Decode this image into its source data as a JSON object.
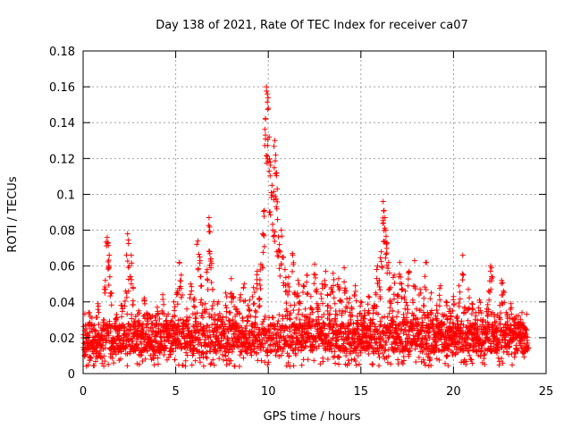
{
  "chart_data": {
    "type": "scatter",
    "title": "Day 138 of 2021, Rate Of TEC Index for receiver ca07",
    "xlabel": "GPS time / hours",
    "ylabel": "ROTI / TECUs",
    "xlim": [
      0,
      25
    ],
    "ylim": [
      0,
      0.18
    ],
    "xticks": [
      0,
      5,
      10,
      15,
      20,
      25
    ],
    "xtick_labels": [
      "0",
      "5",
      "10",
      "15",
      "20",
      "25"
    ],
    "yticks": [
      0,
      0.02,
      0.04,
      0.06,
      0.08,
      0.1,
      0.12,
      0.14,
      0.16,
      0.18
    ],
    "ytick_labels": [
      "0",
      "0.02",
      "0.04",
      "0.06",
      "0.08",
      "0.1",
      "0.12",
      "0.14",
      "0.16",
      "0.18"
    ],
    "grid": true,
    "marker": "+",
    "color": "#ff0000",
    "series": [
      {
        "name": "ca07",
        "points": [
          [
            0.1,
            0.012
          ],
          [
            0.2,
            0.021
          ],
          [
            0.3,
            0.034
          ],
          [
            0.4,
            0.009
          ],
          [
            0.5,
            0.018
          ],
          [
            0.6,
            0.027
          ],
          [
            0.7,
            0.015
          ],
          [
            0.8,
            0.039
          ],
          [
            0.9,
            0.011
          ],
          [
            1.0,
            0.024
          ],
          [
            1.1,
            0.03
          ],
          [
            1.2,
            0.052
          ],
          [
            1.3,
            0.076
          ],
          [
            1.35,
            0.073
          ],
          [
            1.4,
            0.06
          ],
          [
            1.5,
            0.045
          ],
          [
            1.6,
            0.02
          ],
          [
            1.7,
            0.014
          ],
          [
            1.8,
            0.033
          ],
          [
            1.9,
            0.026
          ],
          [
            2.0,
            0.017
          ],
          [
            2.1,
            0.038
          ],
          [
            2.2,
            0.022
          ],
          [
            2.3,
            0.046
          ],
          [
            2.4,
            0.078
          ],
          [
            2.5,
            0.06
          ],
          [
            2.6,
            0.066
          ],
          [
            2.7,
            0.048
          ],
          [
            2.8,
            0.029
          ],
          [
            2.9,
            0.019
          ],
          [
            3.0,
            0.035
          ],
          [
            3.1,
            0.013
          ],
          [
            3.2,
            0.025
          ],
          [
            3.3,
            0.042
          ],
          [
            3.4,
            0.016
          ],
          [
            3.5,
            0.031
          ],
          [
            3.6,
            0.02
          ],
          [
            3.7,
            0.028
          ],
          [
            3.8,
            0.011
          ],
          [
            3.9,
            0.023
          ],
          [
            4.0,
            0.037
          ],
          [
            4.1,
            0.015
          ],
          [
            4.2,
            0.027
          ],
          [
            4.3,
            0.044
          ],
          [
            4.4,
            0.018
          ],
          [
            4.5,
            0.032
          ],
          [
            4.6,
            0.022
          ],
          [
            4.7,
            0.014
          ],
          [
            4.8,
            0.029
          ],
          [
            4.9,
            0.04
          ],
          [
            5.0,
            0.019
          ],
          [
            5.1,
            0.046
          ],
          [
            5.2,
            0.062
          ],
          [
            5.3,
            0.055
          ],
          [
            5.4,
            0.028
          ],
          [
            5.5,
            0.017
          ],
          [
            5.6,
            0.036
          ],
          [
            5.7,
            0.024
          ],
          [
            5.8,
            0.05
          ],
          [
            5.9,
            0.021
          ],
          [
            6.0,
            0.042
          ],
          [
            6.1,
            0.031
          ],
          [
            6.2,
            0.074
          ],
          [
            6.3,
            0.065
          ],
          [
            6.4,
            0.049
          ],
          [
            6.5,
            0.026
          ],
          [
            6.6,
            0.039
          ],
          [
            6.7,
            0.058
          ],
          [
            6.8,
            0.087
          ],
          [
            6.85,
            0.079
          ],
          [
            6.9,
            0.064
          ],
          [
            7.0,
            0.047
          ],
          [
            7.1,
            0.033
          ],
          [
            7.2,
            0.021
          ],
          [
            7.3,
            0.04
          ],
          [
            7.4,
            0.016
          ],
          [
            7.5,
            0.03
          ],
          [
            7.6,
            0.025
          ],
          [
            7.7,
            0.045
          ],
          [
            7.8,
            0.019
          ],
          [
            7.9,
            0.034
          ],
          [
            8.0,
            0.053
          ],
          [
            8.1,
            0.043
          ],
          [
            8.2,
            0.028
          ],
          [
            8.3,
            0.036
          ],
          [
            8.4,
            0.022
          ],
          [
            8.5,
            0.044
          ],
          [
            8.6,
            0.031
          ],
          [
            8.7,
            0.05
          ],
          [
            8.8,
            0.024
          ],
          [
            8.9,
            0.038
          ],
          [
            9.0,
            0.041
          ],
          [
            9.1,
            0.027
          ],
          [
            9.2,
            0.048
          ],
          [
            9.3,
            0.035
          ],
          [
            9.4,
            0.057
          ],
          [
            9.5,
            0.042
          ],
          [
            9.6,
            0.061
          ],
          [
            9.7,
            0.078
          ],
          [
            9.8,
            0.091
          ],
          [
            9.85,
            0.142
          ],
          [
            9.9,
            0.16
          ],
          [
            9.95,
            0.156
          ],
          [
            10.0,
            0.148
          ],
          [
            10.05,
            0.132
          ],
          [
            10.1,
            0.118
          ],
          [
            10.2,
            0.105
          ],
          [
            10.3,
            0.097
          ],
          [
            10.35,
            0.13
          ],
          [
            10.4,
            0.122
          ],
          [
            10.45,
            0.112
          ],
          [
            10.5,
            0.086
          ],
          [
            10.6,
            0.072
          ],
          [
            10.7,
            0.08
          ],
          [
            10.8,
            0.065
          ],
          [
            10.9,
            0.058
          ],
          [
            11.0,
            0.046
          ],
          [
            11.1,
            0.054
          ],
          [
            11.2,
            0.038
          ],
          [
            11.3,
            0.067
          ],
          [
            11.4,
            0.045
          ],
          [
            11.5,
            0.031
          ],
          [
            11.6,
            0.052
          ],
          [
            11.7,
            0.04
          ],
          [
            11.8,
            0.026
          ],
          [
            11.9,
            0.049
          ],
          [
            12.0,
            0.036
          ],
          [
            12.1,
            0.055
          ],
          [
            12.2,
            0.029
          ],
          [
            12.3,
            0.043
          ],
          [
            12.4,
            0.034
          ],
          [
            12.5,
            0.061
          ],
          [
            12.6,
            0.047
          ],
          [
            12.7,
            0.038
          ],
          [
            12.8,
            0.024
          ],
          [
            12.9,
            0.05
          ],
          [
            13.0,
            0.033
          ],
          [
            13.1,
            0.057
          ],
          [
            13.2,
            0.044
          ],
          [
            13.3,
            0.03
          ],
          [
            13.4,
            0.048
          ],
          [
            13.5,
            0.056
          ],
          [
            13.6,
            0.039
          ],
          [
            13.7,
            0.027
          ],
          [
            13.8,
            0.053
          ],
          [
            13.9,
            0.041
          ],
          [
            14.0,
            0.035
          ],
          [
            14.1,
            0.059
          ],
          [
            14.2,
            0.046
          ],
          [
            14.3,
            0.025
          ],
          [
            14.4,
            0.042
          ],
          [
            14.5,
            0.037
          ],
          [
            14.6,
            0.028
          ],
          [
            14.7,
            0.049
          ],
          [
            14.8,
            0.032
          ],
          [
            14.9,
            0.022
          ],
          [
            15.0,
            0.04
          ],
          [
            15.1,
            0.018
          ],
          [
            15.2,
            0.035
          ],
          [
            15.3,
            0.026
          ],
          [
            15.4,
            0.043
          ],
          [
            15.5,
            0.03
          ],
          [
            15.6,
            0.021
          ],
          [
            15.7,
            0.038
          ],
          [
            15.8,
            0.045
          ],
          [
            15.9,
            0.06
          ],
          [
            16.0,
            0.052
          ],
          [
            16.1,
            0.068
          ],
          [
            16.2,
            0.096
          ],
          [
            16.25,
            0.091
          ],
          [
            16.3,
            0.087
          ],
          [
            16.35,
            0.08
          ],
          [
            16.4,
            0.073
          ],
          [
            16.5,
            0.062
          ],
          [
            16.6,
            0.048
          ],
          [
            16.7,
            0.035
          ],
          [
            16.8,
            0.055
          ],
          [
            16.9,
            0.027
          ],
          [
            17.0,
            0.044
          ],
          [
            17.1,
            0.062
          ],
          [
            17.2,
            0.05
          ],
          [
            17.3,
            0.033
          ],
          [
            17.4,
            0.046
          ],
          [
            17.5,
            0.038
          ],
          [
            17.6,
            0.057
          ],
          [
            17.7,
            0.029
          ],
          [
            17.8,
            0.041
          ],
          [
            17.9,
            0.063
          ],
          [
            18.0,
            0.036
          ],
          [
            18.1,
            0.024
          ],
          [
            18.2,
            0.047
          ],
          [
            18.3,
            0.031
          ],
          [
            18.4,
            0.042
          ],
          [
            18.5,
            0.062
          ],
          [
            18.6,
            0.034
          ],
          [
            18.7,
            0.026
          ],
          [
            18.8,
            0.045
          ],
          [
            18.9,
            0.03
          ],
          [
            19.0,
            0.02
          ],
          [
            19.1,
            0.038
          ],
          [
            19.2,
            0.027
          ],
          [
            19.3,
            0.049
          ],
          [
            19.4,
            0.033
          ],
          [
            19.5,
            0.017
          ],
          [
            19.6,
            0.04
          ],
          [
            19.7,
            0.024
          ],
          [
            19.8,
            0.036
          ],
          [
            19.9,
            0.021
          ],
          [
            20.0,
            0.043
          ],
          [
            20.1,
            0.018
          ],
          [
            20.2,
            0.032
          ],
          [
            20.3,
            0.049
          ],
          [
            20.4,
            0.025
          ],
          [
            20.5,
            0.066
          ],
          [
            20.6,
            0.037
          ],
          [
            20.7,
            0.022
          ],
          [
            20.8,
            0.047
          ],
          [
            20.9,
            0.028
          ],
          [
            21.0,
            0.039
          ],
          [
            21.1,
            0.019
          ],
          [
            21.2,
            0.034
          ],
          [
            21.3,
            0.026
          ],
          [
            21.4,
            0.041
          ],
          [
            21.5,
            0.016
          ],
          [
            21.6,
            0.03
          ],
          [
            21.7,
            0.023
          ],
          [
            21.8,
            0.036
          ],
          [
            21.9,
            0.046
          ],
          [
            22.0,
            0.06
          ],
          [
            22.05,
            0.059
          ],
          [
            22.1,
            0.034
          ],
          [
            22.2,
            0.021
          ],
          [
            22.3,
            0.029
          ],
          [
            22.4,
            0.015
          ],
          [
            22.5,
            0.038
          ],
          [
            22.6,
            0.052
          ],
          [
            22.7,
            0.046
          ],
          [
            22.8,
            0.027
          ],
          [
            22.9,
            0.033
          ],
          [
            23.0,
            0.018
          ],
          [
            23.1,
            0.039
          ],
          [
            23.2,
            0.024
          ],
          [
            23.3,
            0.031
          ],
          [
            23.4,
            0.014
          ],
          [
            23.5,
            0.028
          ],
          [
            23.6,
            0.02
          ],
          [
            23.7,
            0.034
          ],
          [
            23.8,
            0.012
          ],
          [
            23.9,
            0.025
          ],
          [
            24.0,
            0.017
          ]
        ]
      }
    ],
    "density": {
      "note": "dense band of points between ROTI ~0.005 and ~0.035 across the whole day",
      "baseline": [
        0.012,
        0.028
      ],
      "intervals": [
        [
          0,
          24
        ]
      ]
    }
  }
}
